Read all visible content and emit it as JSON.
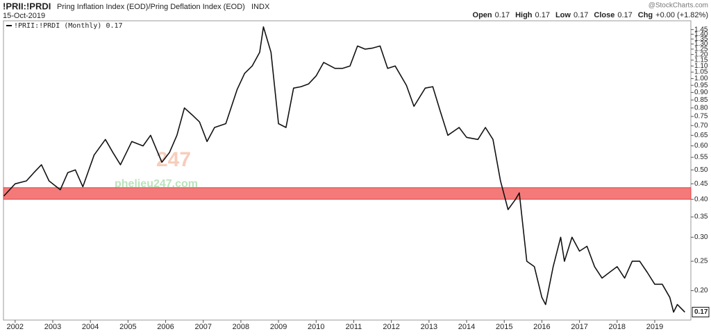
{
  "header": {
    "symbol": "!PRII:!PRDI",
    "description": "Pring Inflation Index (EOD)/Pring Deflation Index (EOD)",
    "exchange": "INDX",
    "date": "15-Oct-2019",
    "source": "@StockCharts.com",
    "quote": [
      {
        "label": "Open",
        "value": "0.17"
      },
      {
        "label": "High",
        "value": "0.17"
      },
      {
        "label": "Low",
        "value": "0.17"
      },
      {
        "label": "Close",
        "value": "0.17"
      },
      {
        "label": "Chg",
        "value": "+0.00 (+1.82%)"
      }
    ]
  },
  "watermark": {
    "logo": "247",
    "site": "phelieu247.com"
  },
  "chart_data": {
    "type": "line",
    "log_scale": true,
    "grid": false,
    "xlim": [
      2001.69,
      2019.96
    ],
    "ylim": [
      0.16,
      1.55
    ],
    "xticks": [
      2002,
      2003,
      2004,
      2005,
      2006,
      2007,
      2008,
      2009,
      2010,
      2011,
      2012,
      2013,
      2014,
      2015,
      2016,
      2017,
      2018,
      2019
    ],
    "yticks": [
      {
        "value": 0.2,
        "label": "0.20"
      },
      {
        "value": 0.25,
        "label": "0.25"
      },
      {
        "value": 0.3,
        "label": "0.30"
      },
      {
        "value": 0.35,
        "label": "0.35"
      },
      {
        "value": 0.4,
        "label": "0.40"
      },
      {
        "value": 0.45,
        "label": "0.45"
      },
      {
        "value": 0.5,
        "label": "0.50"
      },
      {
        "value": 0.55,
        "label": "0.55"
      },
      {
        "value": 0.6,
        "label": "0.60"
      },
      {
        "value": 0.65,
        "label": "0.65"
      },
      {
        "value": 0.7,
        "label": "0.70"
      },
      {
        "value": 0.75,
        "label": "0.75"
      },
      {
        "value": 0.8,
        "label": "0.80"
      },
      {
        "value": 0.85,
        "label": "0.85"
      },
      {
        "value": 0.9,
        "label": "0.90"
      },
      {
        "value": 0.95,
        "label": "0.95"
      },
      {
        "value": 1,
        "label": "1.00"
      },
      {
        "value": 1.05,
        "label": "1.05"
      },
      {
        "value": 1.1,
        "label": "1.10"
      },
      {
        "value": 1.15,
        "label": "1.15"
      },
      {
        "value": 1.2,
        "label": "1.20"
      },
      {
        "value": 1.25,
        "label": "1.25"
      },
      {
        "value": 1.3,
        "label": "1.30"
      },
      {
        "value": 1.35,
        "label": "1.35"
      },
      {
        "value": 1.4,
        "label": "1.40"
      },
      {
        "value": 1.45,
        "label": "1.45"
      }
    ],
    "highlight_band": {
      "range": [
        0.4,
        0.437
      ],
      "color": "#f47a7a"
    },
    "last_value": 0.17,
    "series": [
      {
        "name": "!PRII:!PRDI (Monthly) 0.17",
        "color": "#111111",
        "x": [
          2001.7,
          2002.0,
          2002.3,
          2002.5,
          2002.7,
          2002.9,
          2003.2,
          2003.4,
          2003.6,
          2003.8,
          2004.1,
          2004.4,
          2004.6,
          2004.8,
          2005.1,
          2005.4,
          2005.6,
          2005.9,
          2006.1,
          2006.3,
          2006.5,
          2006.7,
          2006.9,
          2007.1,
          2007.3,
          2007.6,
          2007.9,
          2008.1,
          2008.3,
          2008.5,
          2008.6,
          2008.8,
          2009.0,
          2009.2,
          2009.4,
          2009.6,
          2009.8,
          2010.0,
          2010.2,
          2010.5,
          2010.7,
          2010.9,
          2011.1,
          2011.3,
          2011.5,
          2011.7,
          2011.9,
          2012.1,
          2012.4,
          2012.6,
          2012.9,
          2013.1,
          2013.3,
          2013.5,
          2013.8,
          2014.0,
          2014.3,
          2014.5,
          2014.7,
          2014.9,
          2015.1,
          2015.3,
          2015.4,
          2015.6,
          2015.8,
          2016.0,
          2016.1,
          2016.3,
          2016.5,
          2016.6,
          2016.8,
          2017.0,
          2017.2,
          2017.4,
          2017.6,
          2017.8,
          2018.0,
          2018.2,
          2018.4,
          2018.6,
          2018.8,
          2019.0,
          2019.2,
          2019.4,
          2019.5,
          2019.6,
          2019.8
        ],
        "values": [
          0.41,
          0.45,
          0.46,
          0.49,
          0.52,
          0.46,
          0.43,
          0.49,
          0.5,
          0.44,
          0.56,
          0.63,
          0.57,
          0.52,
          0.62,
          0.6,
          0.65,
          0.53,
          0.57,
          0.65,
          0.8,
          0.76,
          0.72,
          0.62,
          0.69,
          0.71,
          0.92,
          1.04,
          1.1,
          1.22,
          1.48,
          1.22,
          0.71,
          0.69,
          0.93,
          0.94,
          0.96,
          1.02,
          1.13,
          1.08,
          1.08,
          1.1,
          1.28,
          1.25,
          1.26,
          1.28,
          1.08,
          1.1,
          0.95,
          0.81,
          0.93,
          0.94,
          0.78,
          0.65,
          0.69,
          0.64,
          0.63,
          0.69,
          0.63,
          0.46,
          0.37,
          0.4,
          0.42,
          0.25,
          0.24,
          0.19,
          0.18,
          0.24,
          0.3,
          0.25,
          0.3,
          0.27,
          0.28,
          0.24,
          0.22,
          0.23,
          0.24,
          0.22,
          0.25,
          0.25,
          0.23,
          0.21,
          0.21,
          0.19,
          0.17,
          0.18,
          0.17
        ]
      }
    ]
  }
}
